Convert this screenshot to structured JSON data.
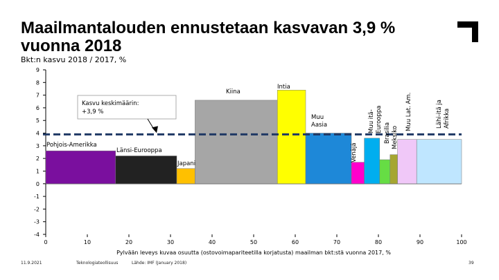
{
  "slide": {
    "title": "Maailmantalouden ennustetaan kasvavan 3,9 % vuonna 2018",
    "subtitle": "Bkt:n kasvu 2018 / 2017, %",
    "footer_date": "11.9.2021",
    "footer_org": "Teknologiateollisuus",
    "footer_source": "Lähde: IMF (January 2018)",
    "page_number": "39",
    "logo_icon": "corner-bracket-icon"
  },
  "chart_data": {
    "type": "bar",
    "subtype": "variable-width",
    "title": "",
    "xlabel": "Pylvään leveys kuvaa osuutta (ostovoimapariteetilla korjatusta) maailman bkt:stä vuonna 2017, %",
    "ylabel": "",
    "xlim": [
      0,
      100
    ],
    "ylim": [
      -4,
      9
    ],
    "xticks": [
      0,
      10,
      20,
      30,
      40,
      50,
      60,
      70,
      80,
      90,
      100
    ],
    "yticks": [
      -4,
      -3,
      -2,
      -1,
      0,
      1,
      2,
      3,
      4,
      5,
      6,
      7,
      8,
      9
    ],
    "grid": false,
    "average": {
      "value": 3.9,
      "label": "Kasvu keskimäärin:\n+3,9 %"
    },
    "bars": [
      {
        "name": "Pohjois-Amerikka",
        "x0": 0.0,
        "x1": 16.8,
        "value": 2.6,
        "color": "#7a0f9e"
      },
      {
        "name": "Länsi-Eurooppa",
        "x0": 16.8,
        "x1": 31.5,
        "value": 2.2,
        "color": "#222222"
      },
      {
        "name": "Japani",
        "x0": 31.5,
        "x1": 35.9,
        "value": 1.2,
        "color": "#ffc000"
      },
      {
        "name": "Kiina",
        "x0": 35.9,
        "x1": 55.7,
        "value": 6.6,
        "color": "#a6a6a6"
      },
      {
        "name": "Intia",
        "x0": 55.7,
        "x1": 62.5,
        "value": 7.4,
        "color": "#ffff00"
      },
      {
        "name": "Muu Aasia",
        "x0": 62.5,
        "x1": 73.5,
        "value": 4.0,
        "color": "#1e88d8"
      },
      {
        "name": "Venäjä",
        "x0": 73.5,
        "x1": 76.6,
        "value": 1.7,
        "color": "#ff00cc"
      },
      {
        "name": "Muu itä-Eurooppa",
        "x0": 76.6,
        "x1": 80.3,
        "value": 3.6,
        "color": "#00aeef"
      },
      {
        "name": "Brasilia",
        "x0": 80.3,
        "x1": 82.8,
        "value": 1.9,
        "color": "#66dd44"
      },
      {
        "name": "Meksiko",
        "x0": 82.8,
        "x1": 84.6,
        "value": 2.3,
        "color": "#a6a632"
      },
      {
        "name": "Muu Lat. Am.",
        "x0": 84.6,
        "x1": 89.2,
        "value": 3.5,
        "color": "#f0c8f8"
      },
      {
        "name": "Lähi-itä ja Afrikka",
        "x0": 89.2,
        "x1": 100.0,
        "value": 3.5,
        "color": "#bfe6ff"
      }
    ]
  }
}
